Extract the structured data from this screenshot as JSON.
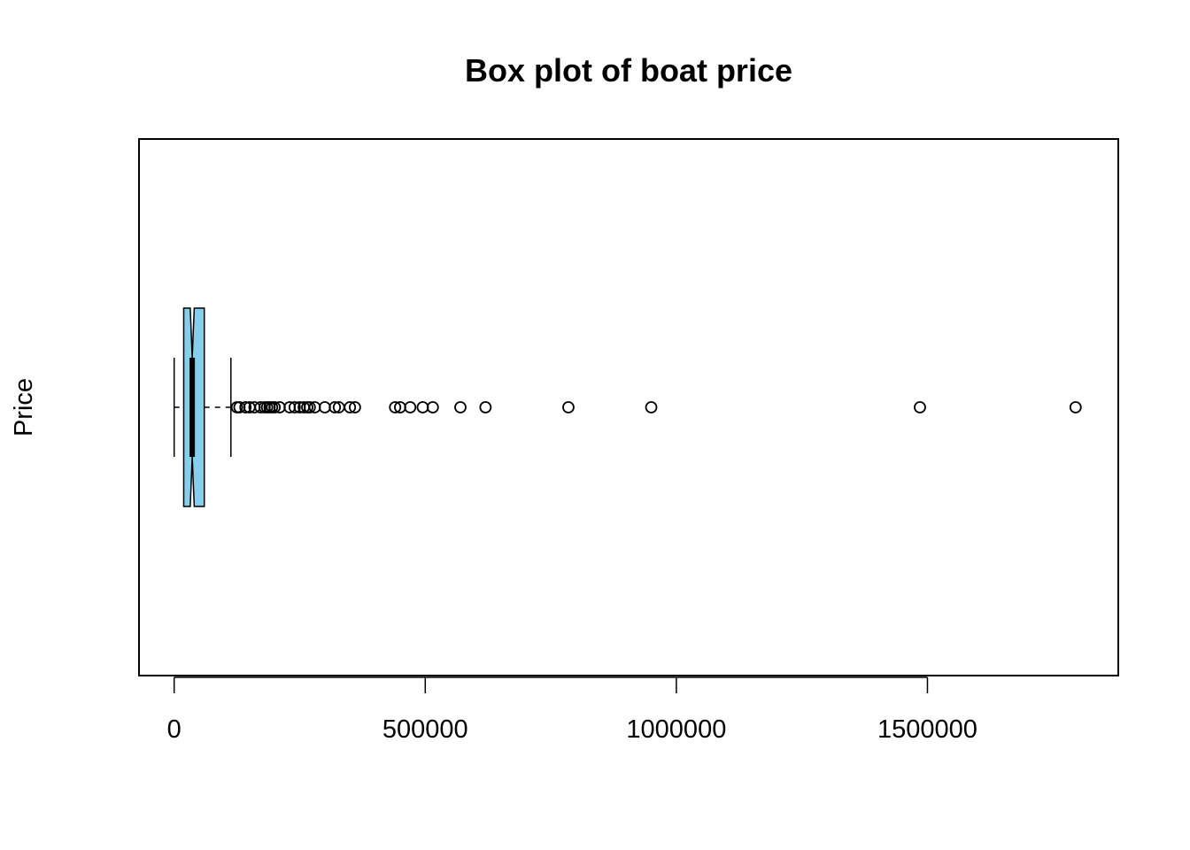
{
  "chart_data": {
    "type": "boxplot",
    "orientation": "horizontal",
    "notched": true,
    "title": "Box plot of boat price",
    "xlabel": "",
    "ylabel": "Price",
    "xlim": [
      -70000,
      1880000
    ],
    "x_ticks": [
      0,
      500000,
      1000000,
      1500000
    ],
    "x_tick_labels": [
      "0",
      "500000",
      "1000000",
      "1500000"
    ],
    "grid": false,
    "colors": {
      "box_fill": "#87CEEB",
      "stroke": "#000000"
    },
    "box": {
      "whisker_low": 0,
      "q1": 19000,
      "median": 36000,
      "q3": 60000,
      "whisker_high": 113000,
      "notch_low": 32000,
      "notch_high": 40000
    },
    "outliers": [
      125000,
      130000,
      142000,
      150000,
      160000,
      172000,
      180000,
      185000,
      190000,
      195000,
      200000,
      210000,
      230000,
      240000,
      250000,
      258000,
      265000,
      270000,
      280000,
      300000,
      320000,
      328000,
      350000,
      360000,
      440000,
      450000,
      470000,
      495000,
      515000,
      570000,
      620000,
      785000,
      950000,
      1485000,
      1795000
    ]
  }
}
